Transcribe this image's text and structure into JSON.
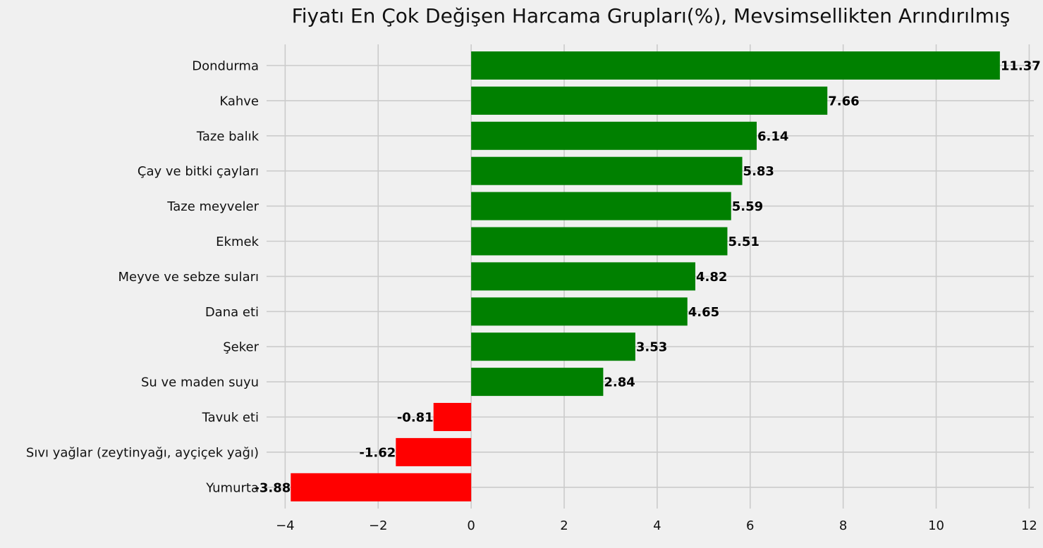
{
  "chart_data": {
    "type": "bar",
    "orientation": "horizontal",
    "title": "Fiyatı En Çok Değişen Harcama Grupları(%), Mevsimsellikten Arındırılmış",
    "xlabel": "",
    "ylabel": "",
    "categories": [
      "Dondurma",
      "Kahve",
      "Taze balık",
      "Çay ve bitki çayları",
      "Taze meyveler",
      "Ekmek",
      "Meyve ve sebze suları",
      "Dana eti",
      "Şeker",
      "Su ve maden suyu",
      "Tavuk eti",
      "Sıvı yağlar (zeytinyağı, ayçiçek yağı)",
      "Yumurta"
    ],
    "values": [
      11.37,
      7.66,
      6.14,
      5.83,
      5.59,
      5.51,
      4.82,
      4.65,
      3.53,
      2.84,
      -0.81,
      -1.62,
      -3.88
    ],
    "value_labels": [
      "11.37",
      "7.66",
      "6.14",
      "5.83",
      "5.59",
      "5.51",
      "4.82",
      "4.65",
      "3.53",
      "2.84",
      "-0.81",
      "-1.62",
      "-3.88"
    ],
    "xlim": [
      -4.4,
      12.1
    ],
    "xticks": [
      -4,
      -2,
      0,
      2,
      4,
      6,
      8,
      10,
      12
    ],
    "xtick_labels": [
      "−4",
      "−2",
      "0",
      "2",
      "4",
      "6",
      "8",
      "10",
      "12"
    ],
    "grid": true,
    "legend": "none",
    "colors": {
      "positive": "#008000",
      "negative": "#ff0000",
      "background": "#f0f0f0",
      "grid": "#cbcbcb"
    }
  }
}
